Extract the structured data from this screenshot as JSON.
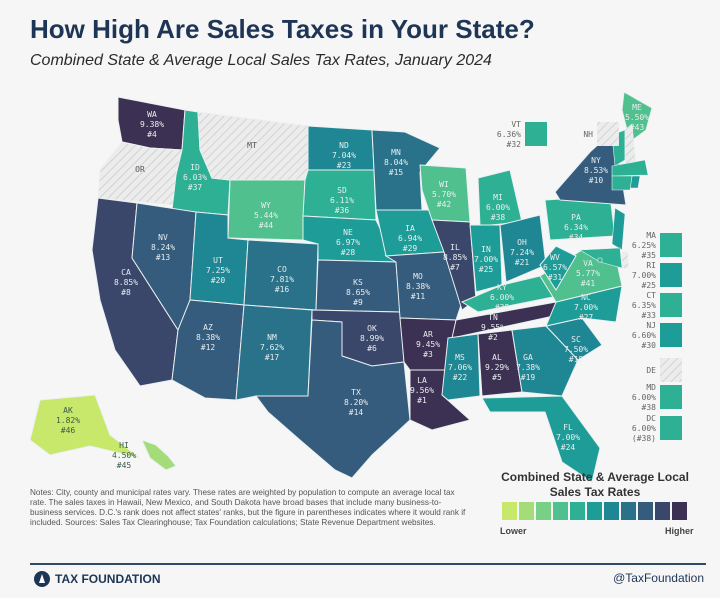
{
  "title": "How High Are Sales Taxes in Your State?",
  "subtitle": "Combined State & Average Local Sales Tax Rates, January 2024",
  "palette": [
    "#c8e86c",
    "#a3dc79",
    "#78cf86",
    "#4fc08e",
    "#2db093",
    "#1e9d98",
    "#1f8794",
    "#2a718a",
    "#355b7d",
    "#3b466b",
    "#3c3152"
  ],
  "no_tax_color": "#e4e4e4",
  "states": [
    {
      "abbr": "WA",
      "rate": "9.38%",
      "rank": "#4"
    },
    {
      "abbr": "OR",
      "rate": "",
      "rank": ""
    },
    {
      "abbr": "CA",
      "rate": "8.85%",
      "rank": "#8"
    },
    {
      "abbr": "ID",
      "rate": "6.03%",
      "rank": "#37"
    },
    {
      "abbr": "MT",
      "rate": "",
      "rank": ""
    },
    {
      "abbr": "WY",
      "rate": "5.44%",
      "rank": "#44"
    },
    {
      "abbr": "NV",
      "rate": "8.24%",
      "rank": "#13"
    },
    {
      "abbr": "UT",
      "rate": "7.25%",
      "rank": "#20"
    },
    {
      "abbr": "CO",
      "rate": "7.81%",
      "rank": "#16"
    },
    {
      "abbr": "AZ",
      "rate": "8.38%",
      "rank": "#12"
    },
    {
      "abbr": "NM",
      "rate": "7.62%",
      "rank": "#17"
    },
    {
      "abbr": "ND",
      "rate": "7.04%",
      "rank": "#23"
    },
    {
      "abbr": "SD",
      "rate": "6.11%",
      "rank": "#36"
    },
    {
      "abbr": "NE",
      "rate": "6.97%",
      "rank": "#28"
    },
    {
      "abbr": "KS",
      "rate": "8.65%",
      "rank": "#9"
    },
    {
      "abbr": "OK",
      "rate": "8.99%",
      "rank": "#6"
    },
    {
      "abbr": "TX",
      "rate": "8.20%",
      "rank": "#14"
    },
    {
      "abbr": "MN",
      "rate": "8.04%",
      "rank": "#15"
    },
    {
      "abbr": "IA",
      "rate": "6.94%",
      "rank": "#29"
    },
    {
      "abbr": "MO",
      "rate": "8.38%",
      "rank": "#11"
    },
    {
      "abbr": "AR",
      "rate": "9.45%",
      "rank": "#3"
    },
    {
      "abbr": "LA",
      "rate": "9.56%",
      "rank": "#1"
    },
    {
      "abbr": "WI",
      "rate": "5.70%",
      "rank": "#42"
    },
    {
      "abbr": "IL",
      "rate": "8.85%",
      "rank": "#7"
    },
    {
      "abbr": "MI",
      "rate": "6.00%",
      "rank": "#38"
    },
    {
      "abbr": "IN",
      "rate": "7.00%",
      "rank": "#25"
    },
    {
      "abbr": "OH",
      "rate": "7.24%",
      "rank": "#21"
    },
    {
      "abbr": "KY",
      "rate": "6.00%",
      "rank": "#38"
    },
    {
      "abbr": "TN",
      "rate": "9.55%",
      "rank": "#2"
    },
    {
      "abbr": "MS",
      "rate": "7.06%",
      "rank": "#22"
    },
    {
      "abbr": "AL",
      "rate": "9.29%",
      "rank": "#5"
    },
    {
      "abbr": "GA",
      "rate": "7.38%",
      "rank": "#19"
    },
    {
      "abbr": "FL",
      "rate": "7.00%",
      "rank": "#24"
    },
    {
      "abbr": "SC",
      "rate": "7.50%",
      "rank": "#18"
    },
    {
      "abbr": "NC",
      "rate": "7.00%",
      "rank": "#27"
    },
    {
      "abbr": "VA",
      "rate": "5.77%",
      "rank": "#41"
    },
    {
      "abbr": "WV",
      "rate": "6.57%",
      "rank": "#31"
    },
    {
      "abbr": "PA",
      "rate": "6.34%",
      "rank": "#34"
    },
    {
      "abbr": "NY",
      "rate": "8.53%",
      "rank": "#10"
    },
    {
      "abbr": "ME",
      "rate": "5.50%",
      "rank": "#43"
    },
    {
      "abbr": "AK",
      "rate": "1.82%",
      "rank": "#46"
    },
    {
      "abbr": "HI",
      "rate": "4.50%",
      "rank": "#45"
    }
  ],
  "small_states": [
    {
      "abbr": "VT",
      "rate": "6.36%",
      "rank": "#32"
    },
    {
      "abbr": "NH",
      "rate": "",
      "rank": ""
    },
    {
      "abbr": "MA",
      "rate": "6.25%",
      "rank": "#35"
    },
    {
      "abbr": "RI",
      "rate": "7.00%",
      "rank": "#25"
    },
    {
      "abbr": "CT",
      "rate": "6.35%",
      "rank": "#33"
    },
    {
      "abbr": "NJ",
      "rate": "6.60%",
      "rank": "#30"
    },
    {
      "abbr": "DE",
      "rate": "",
      "rank": ""
    },
    {
      "abbr": "MD",
      "rate": "6.00%",
      "rank": "#38"
    },
    {
      "abbr": "DC",
      "rate": "6.00%",
      "rank": "(#38)"
    }
  ],
  "notes": "Notes: City, county and municipal rates vary. These rates are weighted by population to compute an average local tax rate. The sales taxes in Hawaii, New Mexico, and South Dakota have broad bases that include many business-to-business services. D.C.'s rank does not affect states' ranks, but the figure in parentheses indicates where it would rank if included. Sources: Sales Tax Clearinghouse; Tax Foundation calculations; State Revenue Department websites.",
  "legend": {
    "title": "Combined State & Average Local Sales Tax Rates",
    "low": "Lower",
    "high": "Higher"
  },
  "footer": {
    "brand": "TAX FOUNDATION",
    "handle": "@TaxFoundation"
  }
}
